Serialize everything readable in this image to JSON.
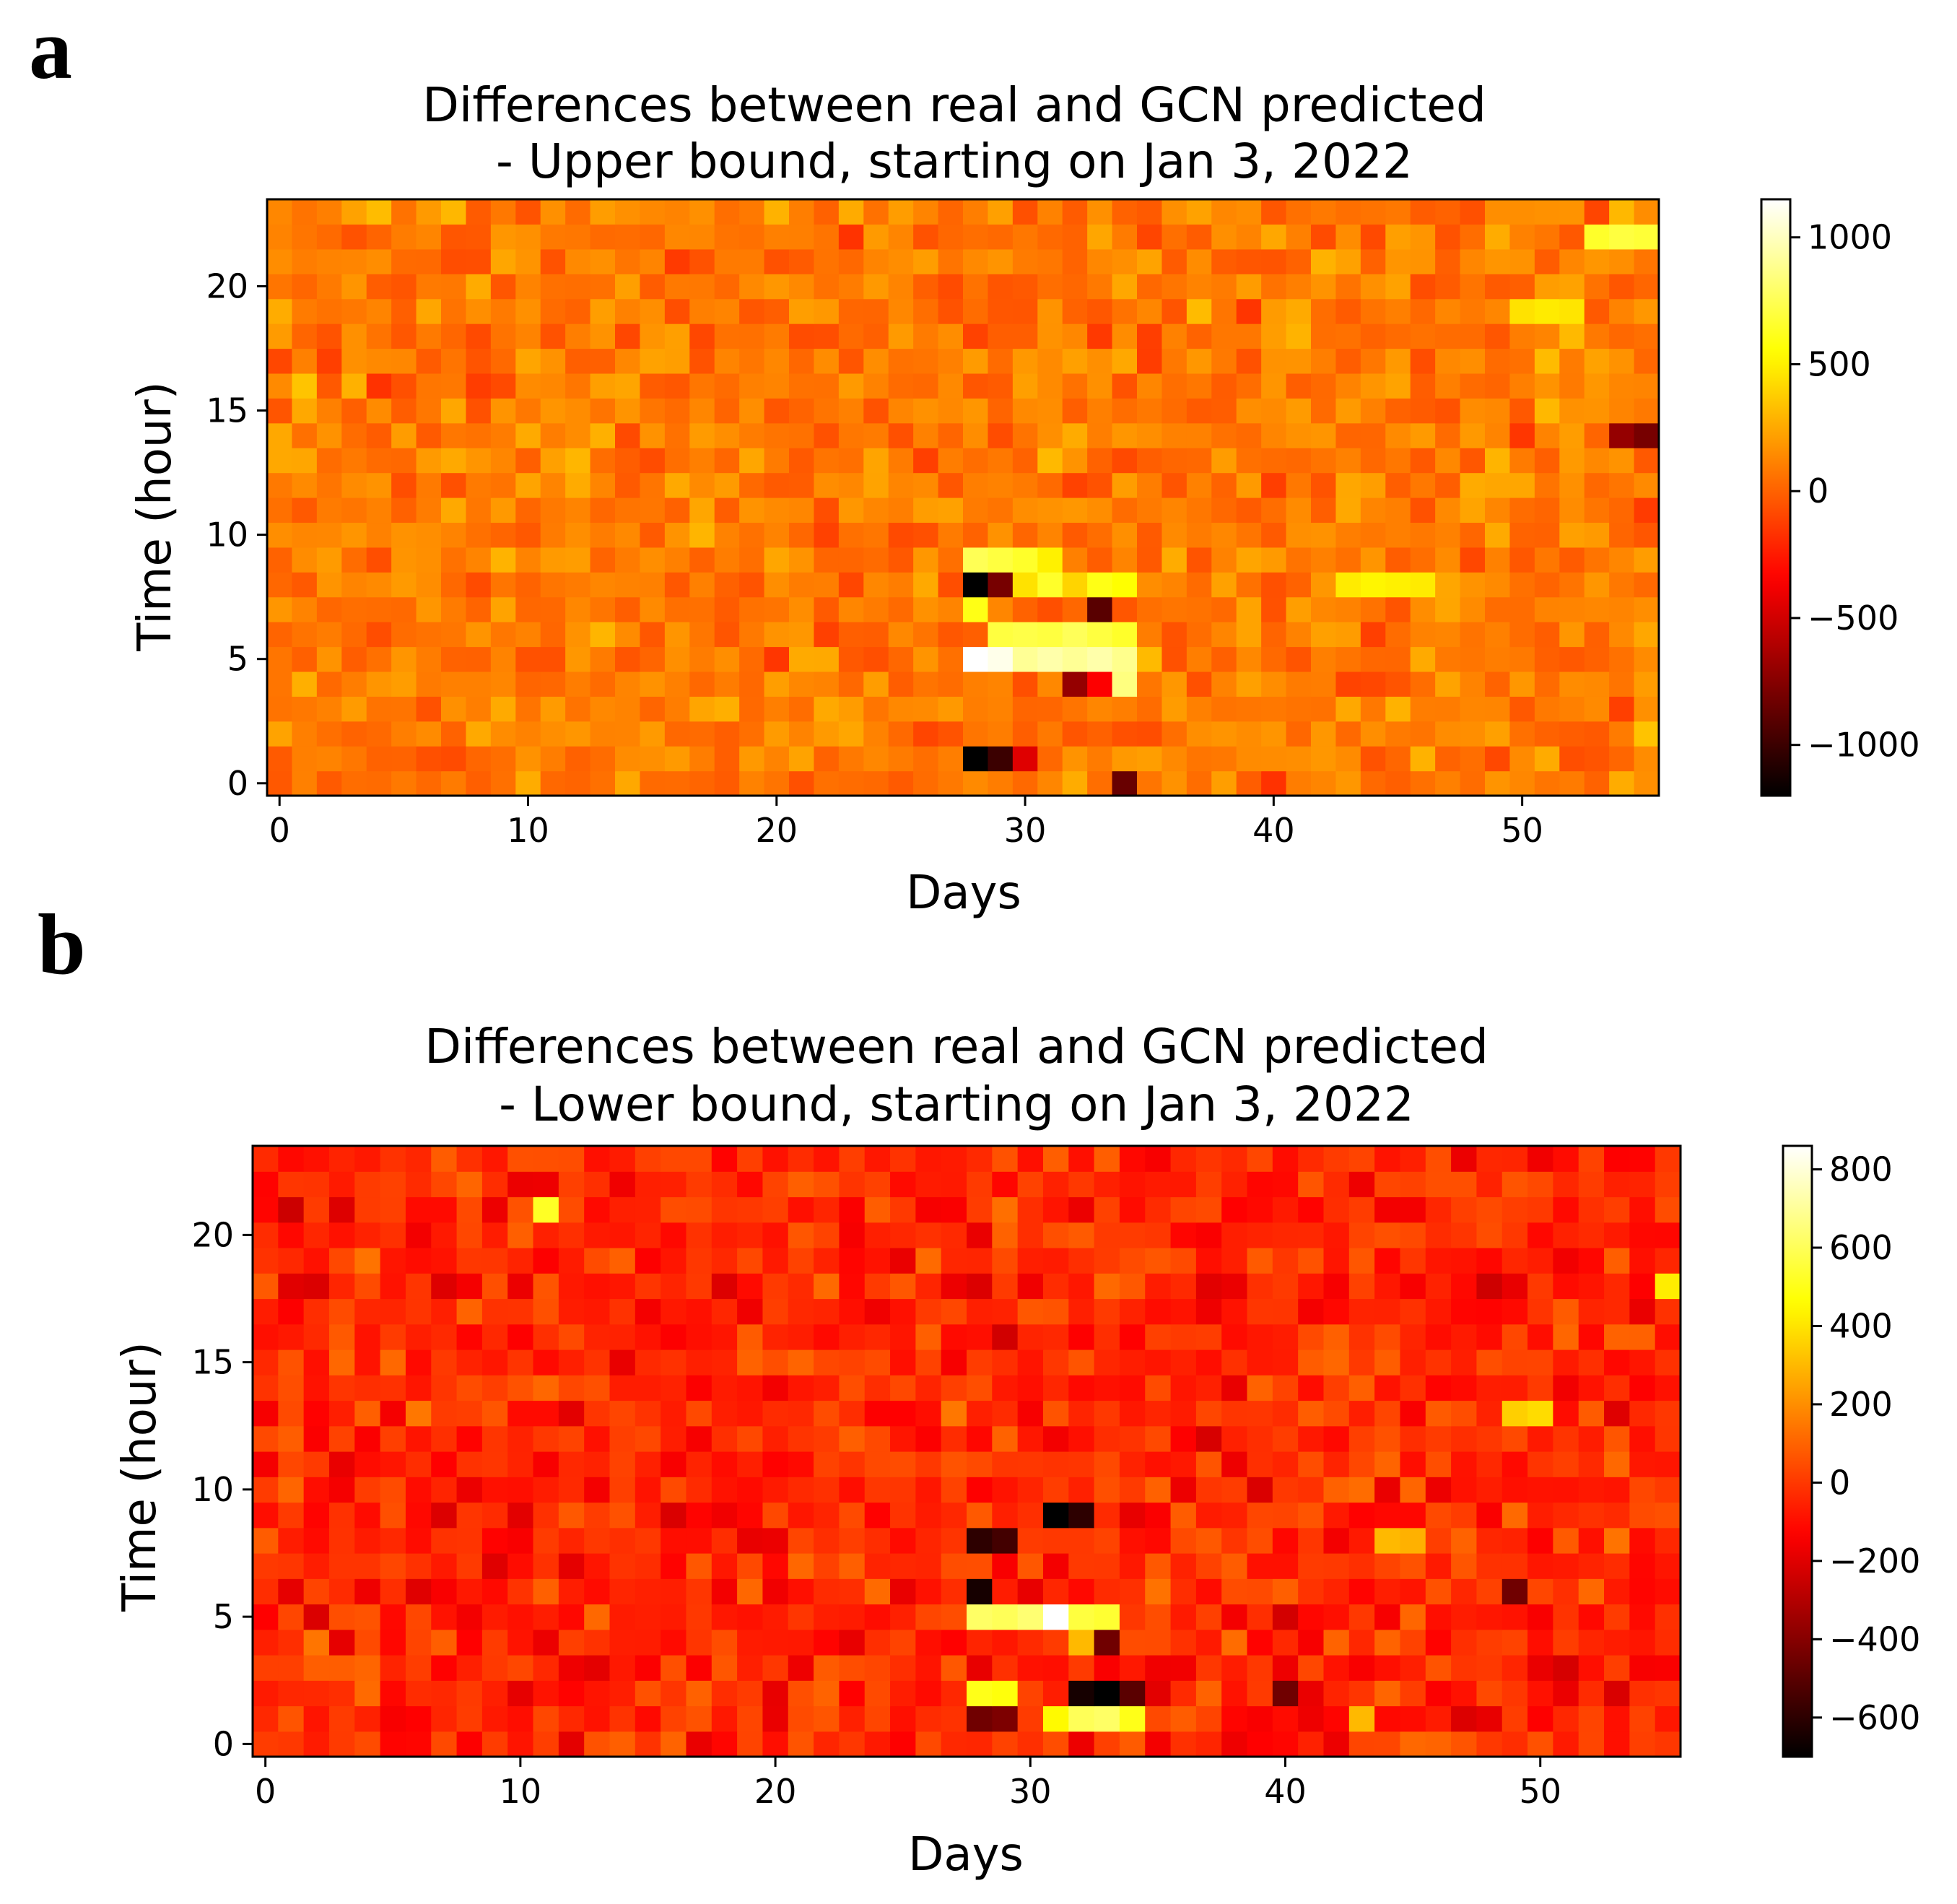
{
  "chart_data": [
    {
      "panel_label": "a",
      "type": "heatmap",
      "title": [
        "Differences between real and GCN predicted",
        "- Upper bound, starting on Jan 3, 2022"
      ],
      "xlabel": "Days",
      "ylabel": "Time (hour)",
      "xlim": [
        -0.5,
        55.5
      ],
      "ylim": [
        -0.5,
        23.5
      ],
      "x_ticks": [
        0,
        10,
        20,
        30,
        40,
        50
      ],
      "x_tick_labels": [
        "0",
        "10",
        "20",
        "30",
        "40",
        "50"
      ],
      "y_ticks": [
        0,
        5,
        10,
        15,
        20
      ],
      "y_tick_labels": [
        "0",
        "5",
        "10",
        "15",
        "20"
      ],
      "colormap": "hot",
      "vmin": -1200,
      "vmax": 1150,
      "colorbar_ticks": [
        1000,
        500,
        0,
        -500,
        -1000
      ],
      "colorbar_tick_labels": [
        "1000",
        "500",
        "0",
        "−500",
        "−1000"
      ],
      "n_days": 56,
      "n_hours": 24,
      "base_value": 80,
      "noise_amplitude": 170,
      "seed": 11,
      "cells": [
        {
          "day": 28,
          "hour": 5,
          "value": 1150
        },
        {
          "day": 29,
          "hour": 5,
          "value": 1100
        },
        {
          "day": 30,
          "hour": 5,
          "value": 900
        },
        {
          "day": 31,
          "hour": 5,
          "value": 950
        },
        {
          "day": 32,
          "hour": 5,
          "value": 900
        },
        {
          "day": 33,
          "hour": 5,
          "value": 950
        },
        {
          "day": 34,
          "hour": 5,
          "value": 880
        },
        {
          "day": 29,
          "hour": 6,
          "value": 700
        },
        {
          "day": 30,
          "hour": 6,
          "value": 720
        },
        {
          "day": 31,
          "hour": 6,
          "value": 700
        },
        {
          "day": 32,
          "hour": 6,
          "value": 760
        },
        {
          "day": 33,
          "hour": 6,
          "value": 700
        },
        {
          "day": 34,
          "hour": 6,
          "value": 650
        },
        {
          "day": 28,
          "hour": 7,
          "value": 600
        },
        {
          "day": 33,
          "hour": 7,
          "value": -900
        },
        {
          "day": 28,
          "hour": 8,
          "value": -1200
        },
        {
          "day": 29,
          "hour": 8,
          "value": -800
        },
        {
          "day": 30,
          "hour": 8,
          "value": 450
        },
        {
          "day": 31,
          "hour": 8,
          "value": 650
        },
        {
          "day": 32,
          "hour": 8,
          "value": 400
        },
        {
          "day": 33,
          "hour": 8,
          "value": 600
        },
        {
          "day": 34,
          "hour": 8,
          "value": 550
        },
        {
          "day": 28,
          "hour": 9,
          "value": 750
        },
        {
          "day": 29,
          "hour": 9,
          "value": 700
        },
        {
          "day": 30,
          "hour": 9,
          "value": 650
        },
        {
          "day": 31,
          "hour": 9,
          "value": 500
        },
        {
          "day": 34,
          "hour": 4,
          "value": 850
        },
        {
          "day": 32,
          "hour": 4,
          "value": -700
        },
        {
          "day": 33,
          "hour": 4,
          "value": -350
        },
        {
          "day": 28,
          "hour": 1,
          "value": -1200
        },
        {
          "day": 29,
          "hour": 1,
          "value": -1000
        },
        {
          "day": 30,
          "hour": 1,
          "value": -450
        },
        {
          "day": 34,
          "hour": 0,
          "value": -850
        },
        {
          "day": 43,
          "hour": 8,
          "value": 480
        },
        {
          "day": 44,
          "hour": 8,
          "value": 520
        },
        {
          "day": 45,
          "hour": 8,
          "value": 500
        },
        {
          "day": 46,
          "hour": 8,
          "value": 480
        },
        {
          "day": 53,
          "hour": 22,
          "value": 650
        },
        {
          "day": 54,
          "hour": 22,
          "value": 700
        },
        {
          "day": 55,
          "hour": 22,
          "value": 680
        },
        {
          "day": 54,
          "hour": 14,
          "value": -700
        },
        {
          "day": 55,
          "hour": 14,
          "value": -800
        },
        {
          "day": 50,
          "hour": 19,
          "value": 450
        },
        {
          "day": 51,
          "hour": 19,
          "value": 480
        },
        {
          "day": 52,
          "hour": 19,
          "value": 460
        }
      ]
    },
    {
      "panel_label": "b",
      "type": "heatmap",
      "title": [
        "Differences between real and GCN predicted",
        "- Lower bound, starting on Jan 3, 2022"
      ],
      "xlabel": "Days",
      "ylabel": "Time (hour)",
      "xlim": [
        -0.5,
        55.5
      ],
      "ylim": [
        -0.5,
        23.5
      ],
      "x_ticks": [
        0,
        10,
        20,
        30,
        40,
        50
      ],
      "x_tick_labels": [
        "0",
        "10",
        "20",
        "30",
        "40",
        "50"
      ],
      "y_ticks": [
        0,
        5,
        10,
        15,
        20
      ],
      "y_tick_labels": [
        "0",
        "5",
        "10",
        "15",
        "20"
      ],
      "colormap": "hot",
      "vmin": -700,
      "vmax": 860,
      "colorbar_ticks": [
        800,
        600,
        400,
        200,
        0,
        -200,
        -400,
        -600
      ],
      "colorbar_tick_labels": [
        "800",
        "600",
        "400",
        "200",
        "0",
        "−200",
        "−400",
        "−600"
      ],
      "n_days": 56,
      "n_hours": 24,
      "base_value": -40,
      "noise_amplitude": 140,
      "seed": 29,
      "cells": [
        {
          "day": 28,
          "hour": 5,
          "value": 620
        },
        {
          "day": 29,
          "hour": 5,
          "value": 600
        },
        {
          "day": 30,
          "hour": 5,
          "value": 640
        },
        {
          "day": 31,
          "hour": 5,
          "value": 860
        },
        {
          "day": 32,
          "hour": 5,
          "value": 560
        },
        {
          "day": 33,
          "hour": 5,
          "value": 540
        },
        {
          "day": 28,
          "hour": 6,
          "value": -650
        },
        {
          "day": 28,
          "hour": 8,
          "value": -600
        },
        {
          "day": 29,
          "hour": 8,
          "value": -550
        },
        {
          "day": 31,
          "hour": 9,
          "value": -700
        },
        {
          "day": 32,
          "hour": 9,
          "value": -600
        },
        {
          "day": 33,
          "hour": 4,
          "value": -450
        },
        {
          "day": 32,
          "hour": 4,
          "value": 300
        },
        {
          "day": 28,
          "hour": 2,
          "value": 500
        },
        {
          "day": 29,
          "hour": 2,
          "value": 480
        },
        {
          "day": 32,
          "hour": 2,
          "value": -650
        },
        {
          "day": 33,
          "hour": 2,
          "value": -700
        },
        {
          "day": 34,
          "hour": 2,
          "value": -500
        },
        {
          "day": 28,
          "hour": 1,
          "value": -450
        },
        {
          "day": 29,
          "hour": 1,
          "value": -420
        },
        {
          "day": 31,
          "hour": 1,
          "value": 450
        },
        {
          "day": 32,
          "hour": 1,
          "value": 600
        },
        {
          "day": 33,
          "hour": 1,
          "value": 620
        },
        {
          "day": 34,
          "hour": 1,
          "value": 500
        },
        {
          "day": 11,
          "hour": 21,
          "value": 520
        },
        {
          "day": 44,
          "hour": 8,
          "value": 300
        },
        {
          "day": 45,
          "hour": 8,
          "value": 280
        },
        {
          "day": 43,
          "hour": 1,
          "value": 300
        },
        {
          "day": 55,
          "hour": 18,
          "value": 420
        },
        {
          "day": 49,
          "hour": 13,
          "value": 350
        },
        {
          "day": 50,
          "hour": 13,
          "value": 380
        },
        {
          "day": 49,
          "hour": 6,
          "value": -450
        },
        {
          "day": 40,
          "hour": 2,
          "value": -450
        }
      ]
    }
  ]
}
